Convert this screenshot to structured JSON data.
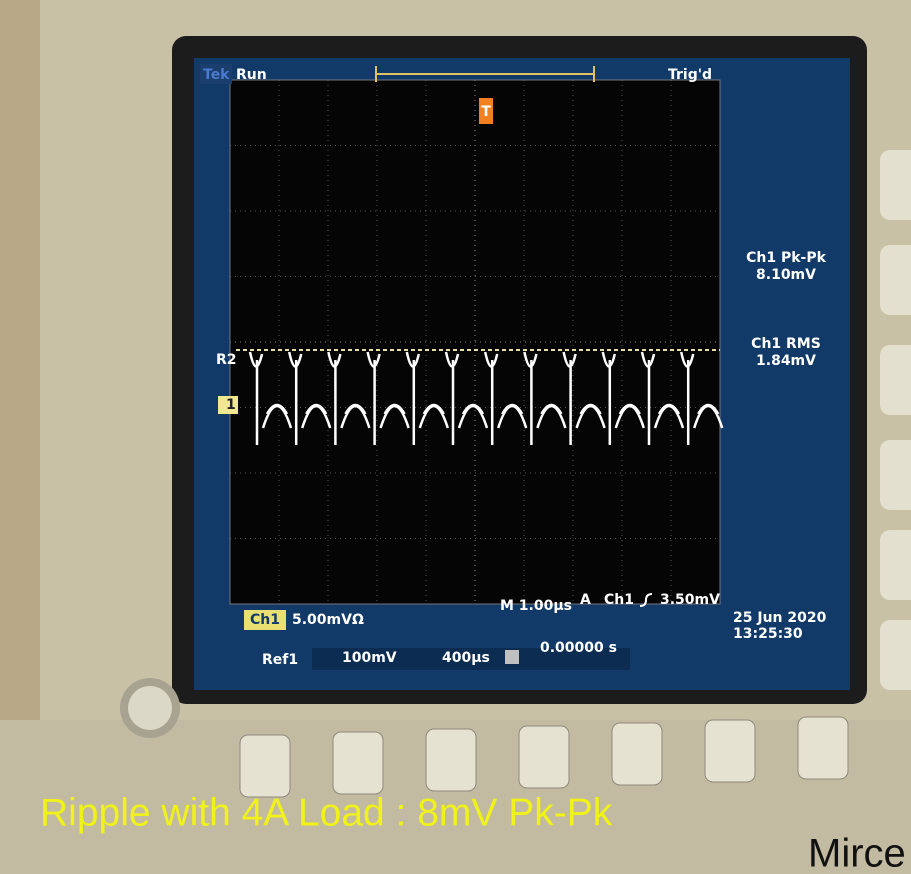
{
  "screen": {
    "brand": "Tek",
    "status": "Run",
    "trigger_status": "Trig'd",
    "trigger_marker": "T",
    "measurements": [
      {
        "label": "Ch1 Pk-Pk",
        "value": "8.10mV"
      },
      {
        "label": "Ch1 RMS",
        "value": "1.84mV"
      }
    ],
    "ref_marker": "R2",
    "channel_marker": "1",
    "ch1_scale": {
      "channel": "Ch1",
      "value": "5.00mVΩ"
    },
    "timebase": "M 1.00µs",
    "trigger": {
      "mode": "A",
      "source": "Ch1",
      "level": "3.50mV"
    },
    "date": "25 Jun 2020",
    "time": "13:25:30",
    "ref1": {
      "label": "Ref1",
      "volts": "100mV",
      "time": "400µs",
      "offset": "0.00000 s"
    }
  },
  "caption": "Ripple with 4A Load : 8mV Pk-Pk",
  "watermark": "Mirce"
}
